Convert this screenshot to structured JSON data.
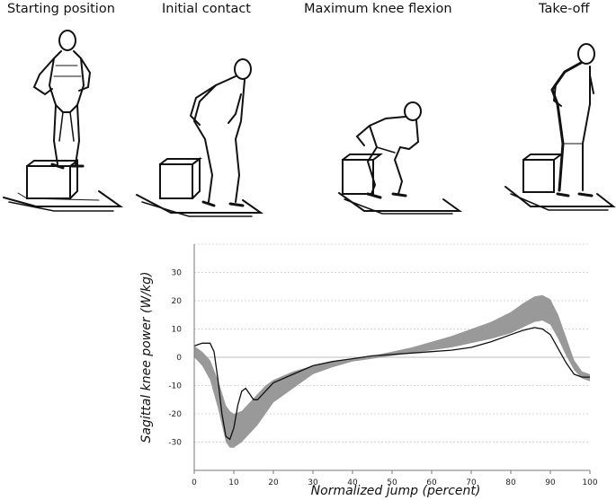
{
  "panels": [
    {
      "label": "Starting position"
    },
    {
      "label": "Initial contact"
    },
    {
      "label": "Maximum knee flexion"
    },
    {
      "label": "Take-off"
    }
  ],
  "chart_data": {
    "type": "line",
    "title": "",
    "xlabel": "Normalized jump (percent)",
    "ylabel": "Sagittal knee power (W/kg)",
    "xlim": [
      0,
      100
    ],
    "ylim": [
      -40,
      40
    ],
    "xticks": [
      "0",
      "10",
      "20",
      "30",
      "40",
      "50",
      "60",
      "70",
      "80",
      "90",
      "100"
    ],
    "yticks": [
      "30",
      "20",
      "10",
      "0",
      "-10",
      "-20",
      "-30"
    ],
    "grid": true,
    "series": [
      {
        "kind": "line",
        "color": "#111111",
        "x": [
          0,
          2,
          4,
          5,
          6,
          7,
          8,
          9,
          10,
          11,
          12,
          13,
          14,
          15,
          16,
          18,
          20,
          25,
          30,
          35,
          40,
          45,
          50,
          55,
          60,
          65,
          70,
          75,
          80,
          83,
          86,
          88,
          90,
          92,
          94,
          96,
          98,
          100
        ],
        "y": [
          4,
          5,
          5,
          2,
          -8,
          -20,
          -28,
          -29,
          -25,
          -17,
          -12,
          -11,
          -13,
          -15,
          -15,
          -12,
          -9,
          -6,
          -3,
          -1.5,
          -0.5,
          0.5,
          1,
          1.5,
          2,
          2.5,
          3.5,
          5.5,
          8,
          9.5,
          10.5,
          10,
          8,
          3,
          -2,
          -6,
          -7,
          -7
        ]
      },
      {
        "kind": "band",
        "color": "#999999",
        "x": [
          0,
          2,
          4,
          6,
          8,
          9,
          10,
          12,
          14,
          16,
          18,
          20,
          25,
          30,
          35,
          40,
          45,
          50,
          55,
          60,
          65,
          70,
          75,
          80,
          83,
          86,
          88,
          90,
          92,
          94,
          96,
          98,
          100
        ],
        "upper": [
          4,
          2,
          -1,
          -8,
          -17,
          -19,
          -20,
          -19,
          -16,
          -13,
          -10,
          -8,
          -5,
          -3,
          -1.5,
          -0.5,
          0.5,
          2,
          3.5,
          5.5,
          7.5,
          10,
          12.5,
          16,
          19,
          21.5,
          22,
          20.5,
          15,
          7,
          -1,
          -5,
          -6
        ],
        "lower": [
          0,
          -3,
          -8,
          -18,
          -30,
          -32,
          -32,
          -30,
          -27,
          -24,
          -20,
          -16,
          -11,
          -6,
          -3.5,
          -1.5,
          -0.5,
          0.5,
          1.5,
          2.5,
          3.5,
          5,
          6.5,
          8.5,
          10.5,
          12.5,
          13,
          11.5,
          6.5,
          0.5,
          -4.5,
          -7.5,
          -8.5
        ]
      }
    ]
  }
}
